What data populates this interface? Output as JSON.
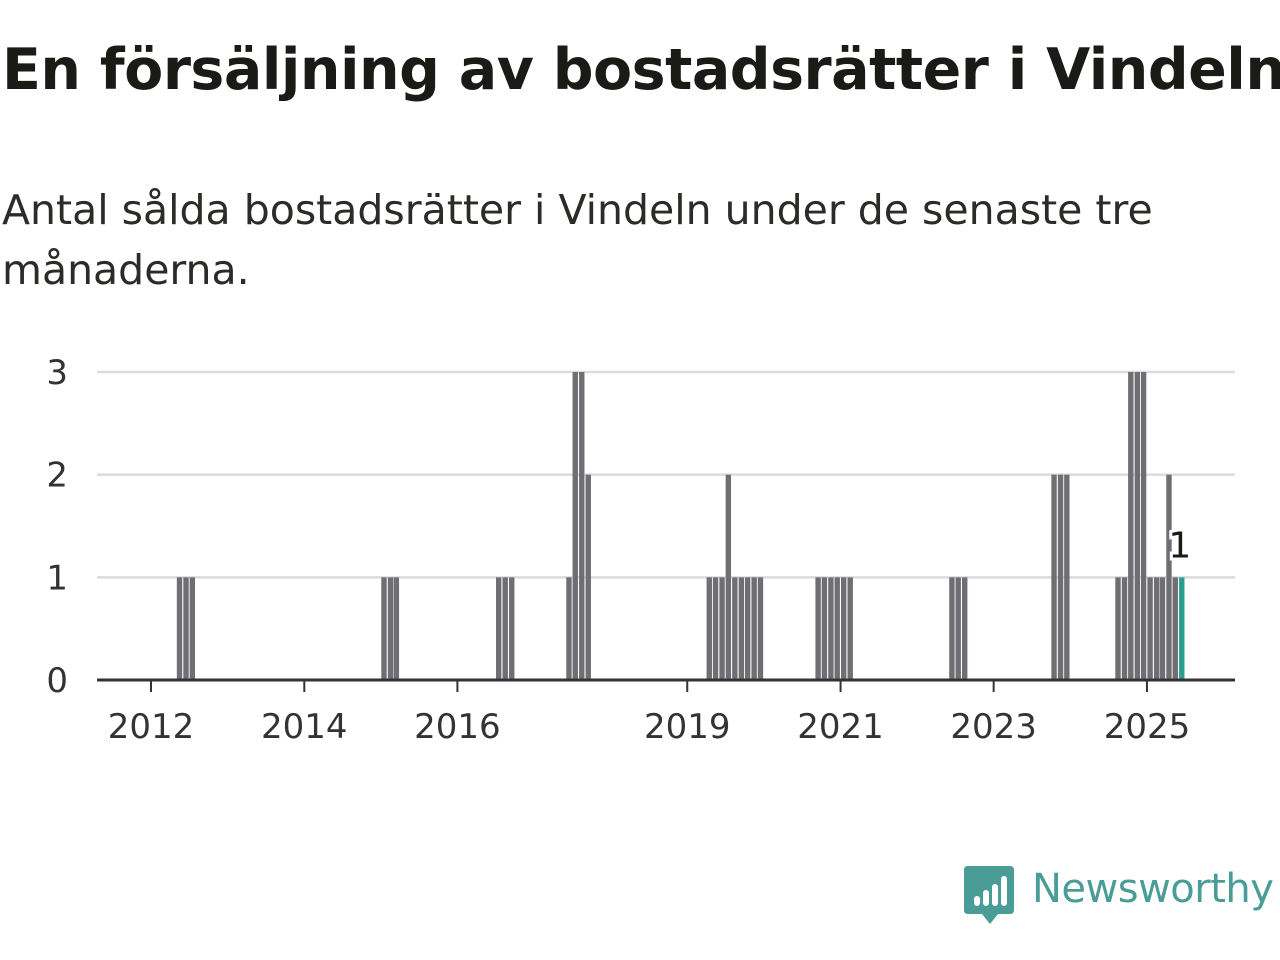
{
  "title": "En försäljning av bostadsrätter i Vindeln",
  "subtitle": "Antal sålda bostadsrätter i Vindeln under de senaste tre månaderna.",
  "brand": {
    "name": "Newsworthy",
    "color": "#4a9d97",
    "icon": "newsworthy-logo-icon"
  },
  "colors": {
    "bar": "#6f6e73",
    "highlight": "#2a9d8f",
    "grid": "#dcdcdc",
    "axis": "#333333"
  },
  "chart_data": {
    "type": "bar",
    "title": "",
    "xlabel": "",
    "ylabel": "",
    "ylim": [
      0,
      3
    ],
    "yticks": [
      "0",
      "1",
      "2",
      "3"
    ],
    "xticks": [
      "2012",
      "2014",
      "2016",
      "2019",
      "2021",
      "2023",
      "2025"
    ],
    "grid": true,
    "x": [
      "2012-05",
      "2012-06",
      "2012-07",
      "2015-01",
      "2015-02",
      "2015-03",
      "2016-07",
      "2016-08",
      "2016-09",
      "2017-06",
      "2017-07",
      "2017-08",
      "2017-09",
      "2019-04",
      "2019-05",
      "2019-06",
      "2019-07",
      "2019-08",
      "2019-09",
      "2019-10",
      "2019-11",
      "2019-12",
      "2020-09",
      "2020-10",
      "2020-11",
      "2020-12",
      "2021-01",
      "2021-02",
      "2022-06",
      "2022-07",
      "2022-08",
      "2023-10",
      "2023-11",
      "2023-12",
      "2024-08",
      "2024-09",
      "2024-10",
      "2024-11",
      "2024-12",
      "2025-01",
      "2025-02",
      "2025-03",
      "2025-04",
      "2025-05",
      "2025-06"
    ],
    "values": [
      1,
      1,
      1,
      1,
      1,
      1,
      1,
      1,
      1,
      1,
      3,
      3,
      2,
      1,
      1,
      1,
      2,
      1,
      1,
      1,
      1,
      1,
      1,
      1,
      1,
      1,
      1,
      1,
      1,
      1,
      1,
      2,
      2,
      2,
      1,
      1,
      3,
      3,
      3,
      1,
      1,
      1,
      2,
      1,
      1
    ],
    "highlight": {
      "x": "2025-06",
      "value": 1,
      "label": "1"
    }
  }
}
